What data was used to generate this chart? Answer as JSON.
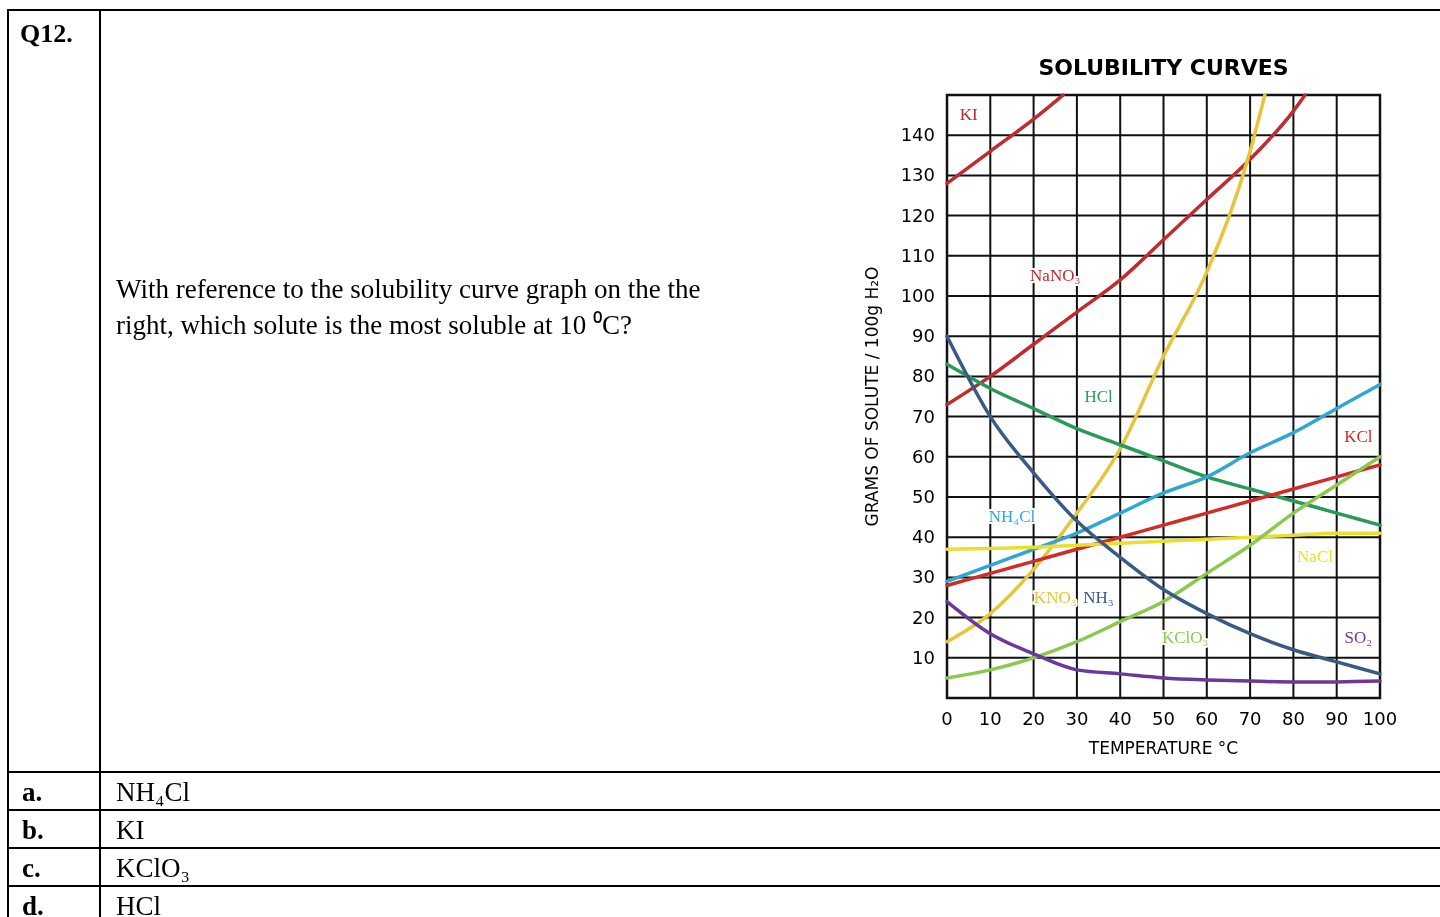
{
  "chart_data": {
    "type": "line",
    "title": "SOLUBILITY CURVES",
    "xlabel": "TEMPERATURE °C",
    "ylabel": "GRAMS OF SOLUTE / 100g H₂O",
    "x": [
      0,
      10,
      20,
      30,
      40,
      50,
      60,
      70,
      80,
      90,
      100
    ],
    "series": [
      {
        "name": "KI",
        "color": "#c22a30",
        "x": [
          0,
          10,
          20,
          26.8
        ],
        "values": [
          128,
          136,
          144,
          150
        ]
      },
      {
        "name": "NaNO₃",
        "color": "#c22a30",
        "x": [
          0,
          10,
          20,
          30,
          40,
          50,
          60,
          70,
          80,
          82.7
        ],
        "values": [
          73,
          80,
          88,
          96,
          104,
          114,
          124,
          134,
          146,
          150
        ]
      },
      {
        "name": "KNO₃",
        "color": "#e6c43c",
        "x": [
          0,
          10,
          20,
          30,
          40,
          50,
          60,
          70,
          73.4
        ],
        "values": [
          14,
          21,
          32,
          46,
          62,
          85,
          106,
          136,
          150
        ]
      },
      {
        "name": "HCl",
        "color": "#2a9a5a",
        "values": [
          83,
          77,
          72,
          67,
          63,
          59,
          55,
          52,
          49,
          46,
          43
        ]
      },
      {
        "name": "NH₄Cl",
        "color": "#2ea8d2",
        "values": [
          29,
          33,
          37,
          41,
          46,
          51,
          55,
          61,
          66,
          72,
          78
        ]
      },
      {
        "name": "KCl",
        "color": "#d42a2a",
        "values": [
          28,
          31,
          34,
          37,
          40,
          43,
          46,
          49,
          52,
          55,
          58
        ]
      },
      {
        "name": "NaCl",
        "color": "#e8e02c",
        "values": [
          37,
          37.2,
          37.5,
          38,
          38.5,
          39,
          39.5,
          40,
          40.5,
          41,
          41
        ]
      },
      {
        "name": "KClO₃",
        "color": "#8cc850",
        "values": [
          5,
          7,
          10,
          14,
          19,
          24,
          31,
          38,
          46,
          53,
          60
        ]
      },
      {
        "name": "NH₃",
        "color": "#3a5a80",
        "values": [
          90,
          70,
          56,
          44,
          35,
          27,
          21,
          16,
          12,
          9,
          6
        ]
      },
      {
        "name": "SO₂",
        "color": "#6a3a9a",
        "values": [
          24,
          16,
          11,
          7,
          6,
          5,
          4.5,
          4.2,
          4,
          4,
          4.2
        ]
      }
    ],
    "xlim": [
      0,
      100
    ],
    "ylim": [
      0,
      150
    ],
    "xticks": [
      0,
      10,
      20,
      30,
      40,
      50,
      60,
      70,
      80,
      90,
      100
    ],
    "yticks": [
      10,
      20,
      30,
      40,
      50,
      60,
      70,
      80,
      90,
      100,
      110,
      120,
      130,
      140
    ],
    "grid": true,
    "legend": false,
    "marker": "none",
    "line_style": "solid",
    "annotations": [
      "Q12.",
      "With reference to the solubility curve graph on the the right, which solute is the most soluble at 10 ⁰C?",
      "a.",
      "NH₄Cl",
      "b.",
      "KI",
      "c.",
      "KClO₃",
      "d.",
      "HCl"
    ]
  }
}
